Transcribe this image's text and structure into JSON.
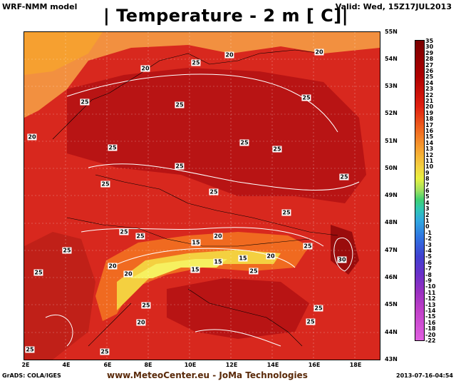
{
  "header": {
    "model": "WRF-NMM model",
    "title": "| Temperature - 2 m [   C]|",
    "valid": "Valid: Wed, 15Z17JUL2013"
  },
  "axes": {
    "lat_labels": [
      "55N",
      "54N",
      "53N",
      "52N",
      "51N",
      "50N",
      "49N",
      "48N",
      "47N",
      "46N",
      "45N",
      "44N",
      "43N"
    ],
    "lon_labels": [
      "2E",
      "4E",
      "6E",
      "8E",
      "10E",
      "12E",
      "14E",
      "16E",
      "18E"
    ]
  },
  "colorbar": {
    "labels": [
      "35",
      "30",
      "29",
      "28",
      "27",
      "26",
      "25",
      "24",
      "23",
      "22",
      "21",
      "20",
      "19",
      "18",
      "17",
      "16",
      "15",
      "14",
      "13",
      "12",
      "11",
      "10",
      "9",
      "8",
      "7",
      "6",
      "5",
      "4",
      "3",
      "2",
      "1",
      "0",
      "-1",
      "-2",
      "-3",
      "-4",
      "-5",
      "-6",
      "-7",
      "-8",
      "-9",
      "-10",
      "-11",
      "-12",
      "-13",
      "-14",
      "-15",
      "-16",
      "-18",
      "-20",
      "-22"
    ]
  },
  "contour_labels": [
    "20",
    "25",
    "20",
    "20",
    "25",
    "25",
    "25",
    "25",
    "25",
    "20",
    "25",
    "25",
    "25",
    "25",
    "25",
    "25",
    "25",
    "25",
    "25",
    "15",
    "20",
    "20",
    "15",
    "15",
    "20",
    "15",
    "20",
    "25",
    "20",
    "30",
    "25",
    "25",
    "25",
    "25",
    "25",
    "25",
    "25"
  ],
  "footer": {
    "grads": "GrADS: COLA/IGES",
    "site": "www.MeteoCenter.eu  -  JoMa Technologies",
    "timestamp": "2013-07-16-04:54"
  },
  "colors": {
    "warm": "#d8281e",
    "hot": "#b81414",
    "cool_alps": "#f4d040",
    "north_sea": "#f29040"
  }
}
